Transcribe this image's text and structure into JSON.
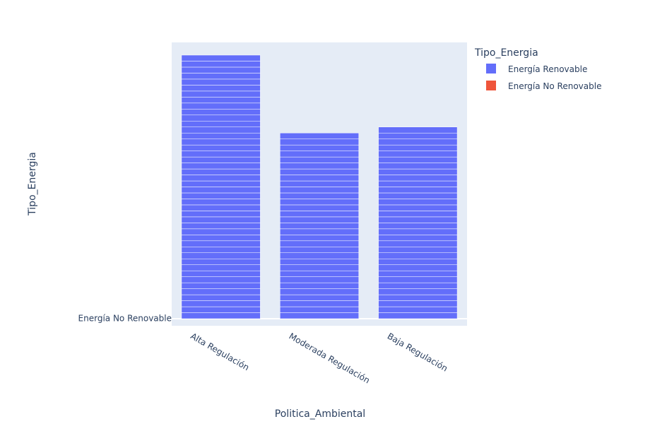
{
  "chart_data": {
    "type": "bar",
    "barmode": "stack",
    "xlabel": "Politica_Ambiental",
    "ylabel": "Tipo_Energia",
    "categories": [
      "Alta Regulación",
      "Moderada Regulación",
      "Baja Regulación"
    ],
    "y_tick_labels": [
      "Energía No Renovable"
    ],
    "series": [
      {
        "name": "Energía Renovable",
        "color": "#636efa",
        "values": [
          44,
          31,
          32
        ]
      },
      {
        "name": "Energía No Renovable",
        "color": "#EF553B",
        "values": [
          0,
          0,
          0
        ]
      }
    ],
    "legend": {
      "title": "Tipo_Energia",
      "placement": "top-right"
    },
    "plot_background": "#e5ecf6",
    "grid": true
  }
}
